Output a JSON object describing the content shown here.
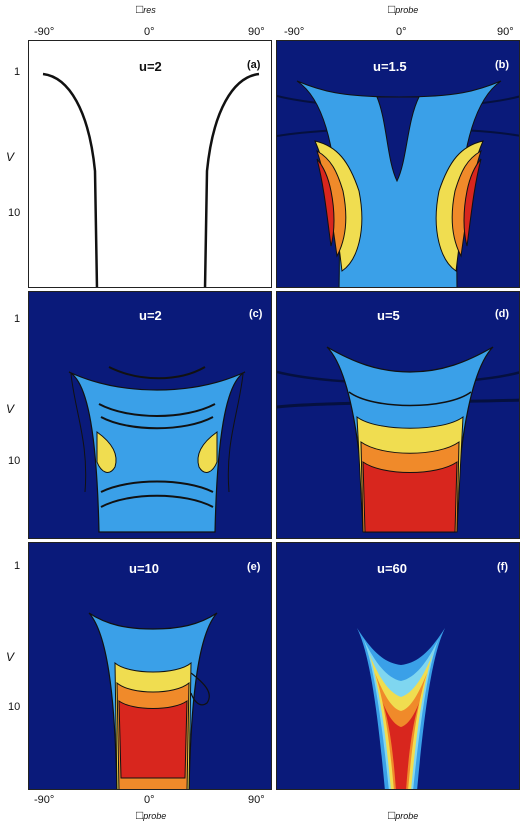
{
  "axes": {
    "top_left_title_symbol": "□",
    "top_left_title_sub": "res",
    "top_right_title_symbol": "□",
    "top_right_title_sub": "probe",
    "bottom_left_title_symbol": "□",
    "bottom_left_title_sub": "probe",
    "bottom_right_title_symbol": "□",
    "bottom_right_title_sub": "probe",
    "x_ticks": [
      "-90°",
      "0°",
      "90°"
    ],
    "y_label": "V",
    "y_ticks": [
      "1",
      "10"
    ]
  },
  "chart_data": [
    {
      "type": "line",
      "panel": "(a)",
      "param": "u=2",
      "xlim": [
        -100,
        100
      ],
      "ylog": true,
      "series": [
        {
          "x": [
            -93,
            -90,
            -80,
            -70,
            -62,
            -57,
            -54,
            -52,
            -52
          ],
          "y": [
            1.0,
            1.05,
            1.3,
            1.9,
            3.2,
            6,
            12,
            25,
            60
          ]
        },
        {
          "x": [
            93,
            90,
            80,
            70,
            62,
            57,
            54,
            52,
            52
          ],
          "y": [
            1.0,
            1.05,
            1.3,
            1.9,
            3.2,
            6,
            12,
            25,
            60
          ]
        }
      ]
    },
    {
      "type": "heatmap",
      "panel": "(b)",
      "param": "u=1.5"
    },
    {
      "type": "heatmap",
      "panel": "(c)",
      "param": "u=2"
    },
    {
      "type": "heatmap",
      "panel": "(d)",
      "param": "u=5"
    },
    {
      "type": "heatmap",
      "panel": "(e)",
      "param": "u=10"
    },
    {
      "type": "heatmap",
      "panel": "(f)",
      "param": "u=60"
    }
  ],
  "colors": {
    "background": "#0a1a7a",
    "light_blue": "#3aa0e8",
    "yellow": "#f0dd50",
    "orange": "#f08a2a",
    "red": "#d8261e",
    "dark_red": "#9a1010"
  }
}
